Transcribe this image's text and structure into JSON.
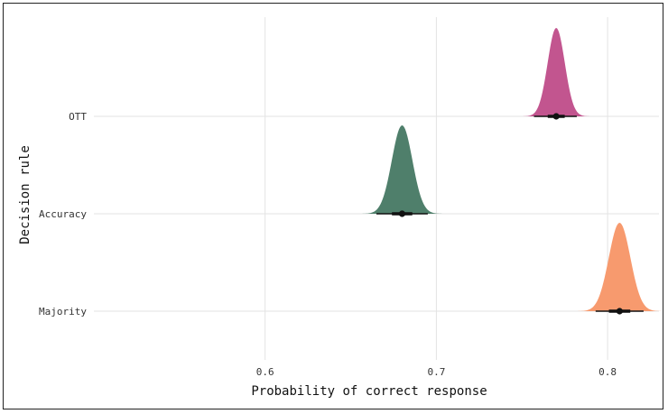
{
  "chart_data": {
    "type": "halfeye",
    "xlabel": "Probability of correct response",
    "ylabel": "Decision rule",
    "xlim": [
      0.5,
      0.83
    ],
    "x_ticks": [
      0.6,
      0.7,
      0.8
    ],
    "x_tick_labels": [
      "0.6",
      "0.7",
      "0.8"
    ],
    "grid": true,
    "categories": [
      "OTT",
      "Accuracy",
      "Majority"
    ],
    "series": [
      {
        "name": "OTT",
        "median": 0.77,
        "sd": 0.005,
        "interval": [
          0.757,
          0.782
        ],
        "color": "#c2558f"
      },
      {
        "name": "Accuracy",
        "median": 0.68,
        "sd": 0.006,
        "interval": [
          0.665,
          0.695
        ],
        "color": "#4f7f6b"
      },
      {
        "name": "Majority",
        "median": 0.807,
        "sd": 0.0063,
        "interval": [
          0.793,
          0.821
        ],
        "color": "#f79a6e"
      }
    ]
  }
}
